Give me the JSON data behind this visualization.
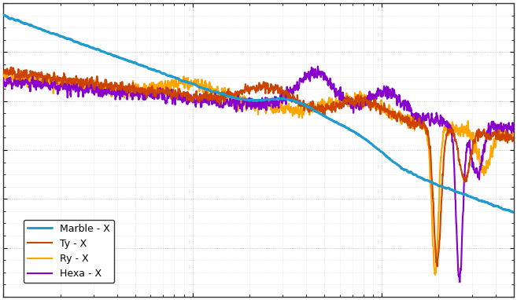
{
  "background_color": "#ffffff",
  "plot_bg_color": "#ffffff",
  "grid_color": "#b0b0b0",
  "colors": {
    "marble": "#1f9bcf",
    "ty": "#cc4400",
    "ry": "#ffa500",
    "hexa": "#8800cc"
  },
  "line_width": 1.1,
  "legend_labels": [
    "Marble - X",
    "Ty - X",
    "Ry - X",
    "Hexa - X"
  ],
  "xlim": [
    1,
    500
  ],
  "ylim": [
    -100,
    20
  ],
  "figsize": [
    6.57,
    3.82
  ],
  "dpi": 100
}
